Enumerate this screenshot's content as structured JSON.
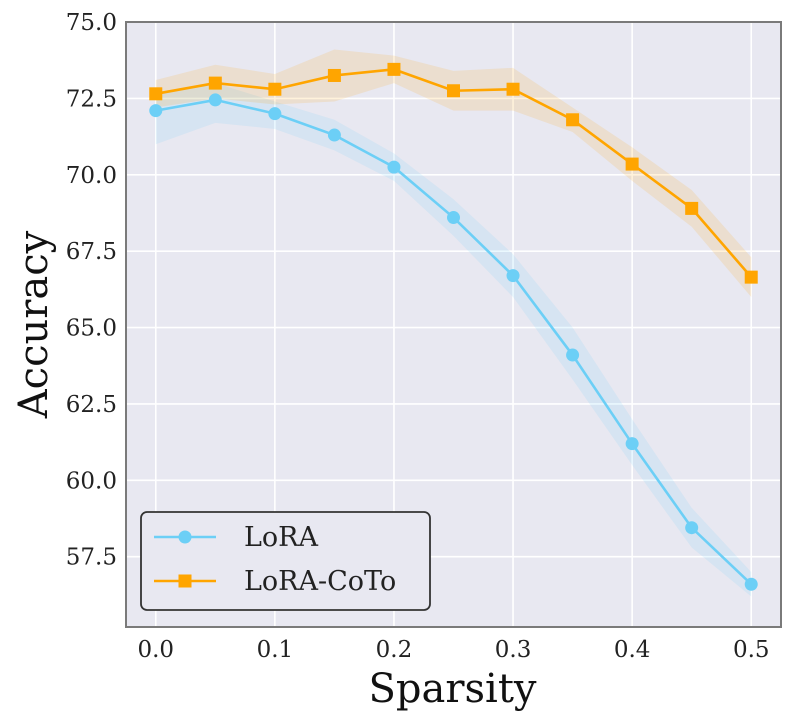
{
  "chart_data": {
    "type": "line",
    "title": "",
    "xlabel": "Sparsity",
    "ylabel": "Accuracy",
    "x": [
      0.0,
      0.05,
      0.1,
      0.15,
      0.2,
      0.25,
      0.3,
      0.35,
      0.4,
      0.45,
      0.5
    ],
    "xlim": [
      -0.025,
      0.525
    ],
    "ylim": [
      55.2,
      75.0
    ],
    "xticks": [
      0.0,
      0.1,
      0.2,
      0.3,
      0.4,
      0.5
    ],
    "xtick_labels": [
      "0.0",
      "0.1",
      "0.2",
      "0.3",
      "0.4",
      "0.5"
    ],
    "yticks": [
      57.5,
      60.0,
      62.5,
      65.0,
      67.5,
      70.0,
      72.5,
      75.0
    ],
    "ytick_labels": [
      "57.5",
      "60.0",
      "62.5",
      "65.0",
      "67.5",
      "70.0",
      "72.5",
      "75.0"
    ],
    "grid": true,
    "legend_position": "lower-left",
    "background_color": "#e8e8f1",
    "series": [
      {
        "name": "LoRA",
        "color": "#6ccff6",
        "marker": "circle",
        "values": [
          72.1,
          72.45,
          72.0,
          71.3,
          70.25,
          68.6,
          66.7,
          64.1,
          61.2,
          58.45,
          56.6
        ],
        "band_lower": [
          71.0,
          71.7,
          71.5,
          70.8,
          69.8,
          68.0,
          66.0,
          63.3,
          60.5,
          57.8,
          56.2
        ],
        "band_upper": [
          72.7,
          73.0,
          72.4,
          71.8,
          70.7,
          69.2,
          67.4,
          65.0,
          62.0,
          59.1,
          57.0
        ]
      },
      {
        "name": "LoRA-CoTo",
        "color": "#ffa500",
        "marker": "square",
        "values": [
          72.65,
          73.0,
          72.8,
          73.25,
          73.45,
          72.75,
          72.8,
          71.8,
          70.35,
          68.9,
          66.65
        ],
        "band_lower": [
          72.2,
          72.5,
          72.3,
          72.4,
          73.0,
          72.1,
          72.1,
          71.4,
          69.8,
          68.3,
          66.0
        ],
        "band_upper": [
          73.1,
          73.6,
          73.3,
          74.1,
          73.9,
          73.4,
          73.5,
          72.2,
          70.9,
          69.5,
          67.3
        ]
      }
    ]
  }
}
